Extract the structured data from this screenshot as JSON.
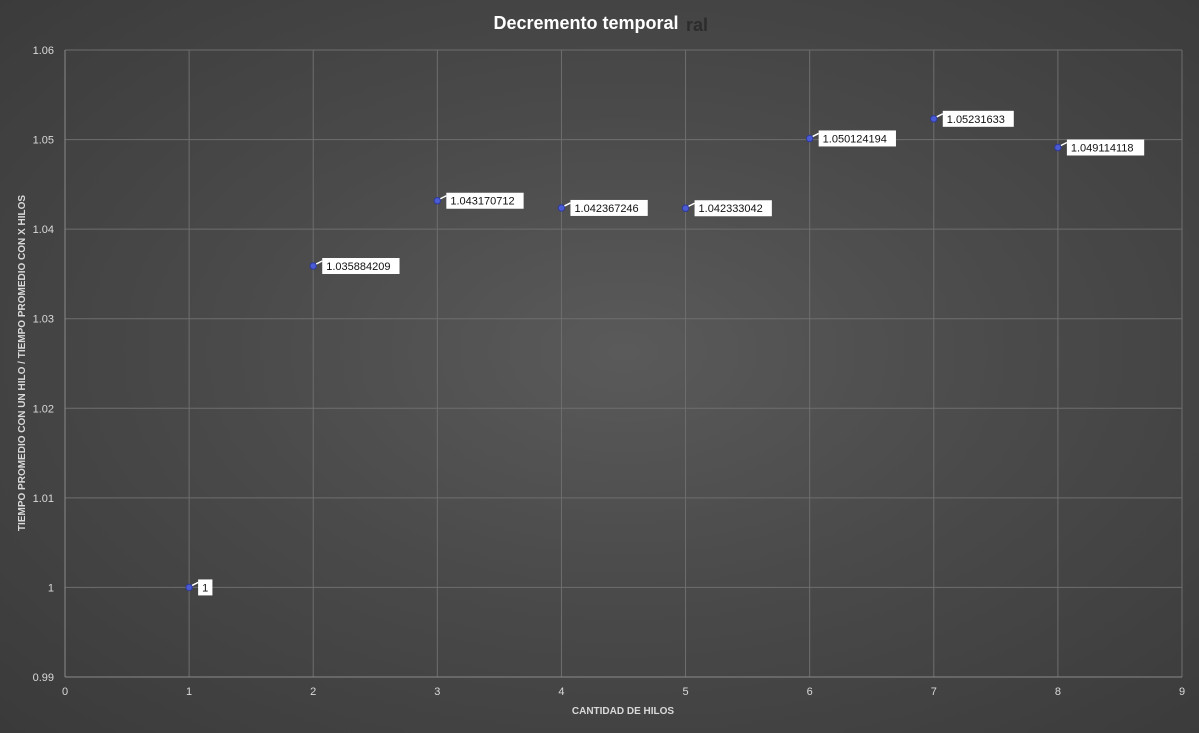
{
  "chart_data": {
    "type": "scatter",
    "title": "Decremento temporal",
    "title_shadow": "ral",
    "xlabel": "CANTIDAD DE HILOS",
    "ylabel": "TIEMPO PROMEDIO CON UN HILO / TIEMPO PROMEDIO CON X HILOS",
    "xlim": [
      0,
      9
    ],
    "ylim": [
      0.99,
      1.06
    ],
    "x_ticks": [
      0,
      1,
      2,
      3,
      4,
      5,
      6,
      7,
      8,
      9
    ],
    "x_tick_labels": [
      "0",
      "1",
      "2",
      "3",
      "4",
      "5",
      "6",
      "7",
      "8",
      "9"
    ],
    "y_ticks": [
      0.99,
      1,
      1.01,
      1.02,
      1.03,
      1.04,
      1.05,
      1.06
    ],
    "y_tick_labels": [
      "0.99",
      "1",
      "1.01",
      "1.02",
      "1.03",
      "1.04",
      "1.05",
      "1.06"
    ],
    "grid": true,
    "point_color": "#4a5bd4",
    "points": [
      {
        "x": 1,
        "y": 1,
        "label": "1"
      },
      {
        "x": 2,
        "y": 1.035884209,
        "label": "1.035884209"
      },
      {
        "x": 3,
        "y": 1.043170712,
        "label": "1.043170712"
      },
      {
        "x": 4,
        "y": 1.042367246,
        "label": "1.042367246"
      },
      {
        "x": 5,
        "y": 1.042333042,
        "label": "1.042333042"
      },
      {
        "x": 6,
        "y": 1.050124194,
        "label": "1.050124194"
      },
      {
        "x": 7,
        "y": 1.05231633,
        "label": "1.05231633"
      },
      {
        "x": 8,
        "y": 1.049114118,
        "label": "1.049114118"
      }
    ]
  }
}
